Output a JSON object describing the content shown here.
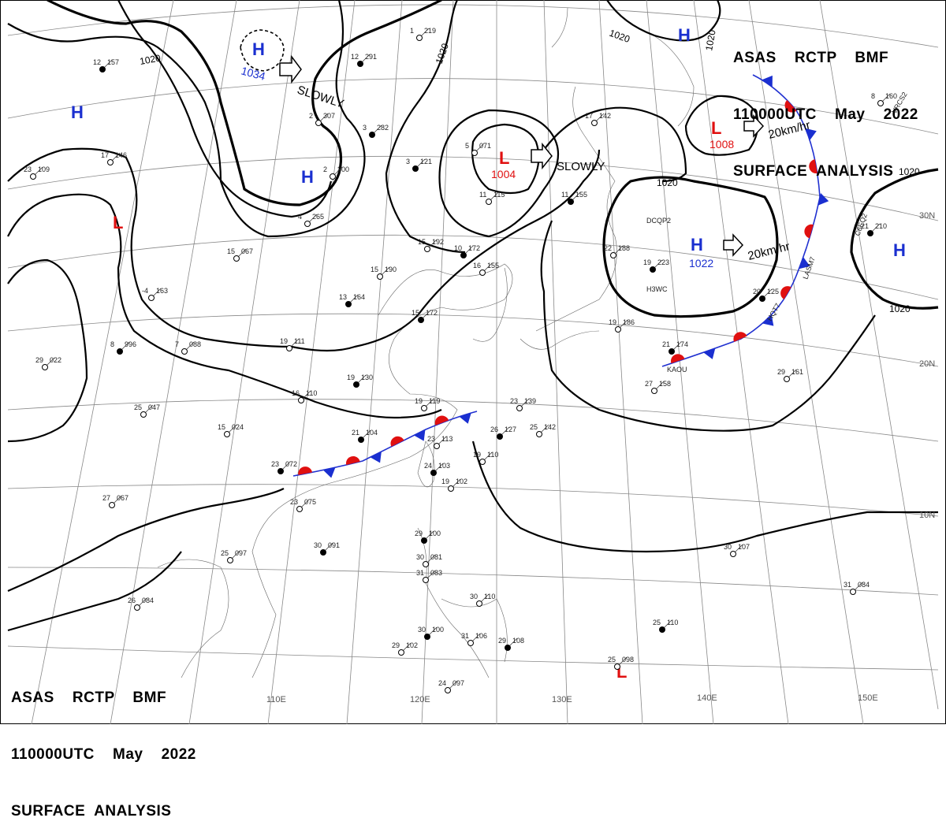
{
  "header": {
    "line1": "ASAS    RCTP    BMF",
    "line2": "110000UTC    May    2022",
    "line3": "SURFACE  ANALYSIS"
  },
  "isobar_label": "1020",
  "pressure_centers": [
    {
      "type": "H",
      "value": "1034",
      "color": "#1a2fd0"
    },
    {
      "type": "H",
      "value": "",
      "color": "#1a2fd0"
    },
    {
      "type": "H",
      "value": "",
      "color": "#1a2fd0"
    },
    {
      "type": "H",
      "value": "1022",
      "color": "#1a2fd0"
    },
    {
      "type": "H",
      "value": "",
      "color": "#1a2fd0"
    },
    {
      "type": "H",
      "value": "",
      "color": "#1a2fd0"
    },
    {
      "type": "L",
      "value": "1004",
      "color": "#e01010"
    },
    {
      "type": "L",
      "value": "1008",
      "color": "#e01010"
    },
    {
      "type": "L",
      "value": "",
      "color": "#e01010"
    },
    {
      "type": "L",
      "value": "",
      "color": "#e01010"
    }
  ],
  "movements": [
    "SLOWLY",
    "SLOWLY",
    "20km/hr",
    "20km/hr"
  ],
  "longitude_labels": [
    "110E",
    "120E",
    "130E",
    "140E",
    "150E"
  ],
  "latitude_labels": [
    "30N",
    "20N",
    "10N"
  ],
  "station_ids": [
    "DCQP2",
    "H3WC",
    "C6EQ2",
    "VRCS2",
    "LASM7",
    "KAOU",
    "HQT7"
  ],
  "stations": [
    {
      "t": "12",
      "p": "157"
    },
    {
      "t": "17",
      "p": "146"
    },
    {
      "t": "23",
      "p": "109"
    },
    {
      "t": "12",
      "p": "291"
    },
    {
      "t": "2",
      "p": "300"
    },
    {
      "t": "2",
      "p": "307"
    },
    {
      "t": "3",
      "p": "282"
    },
    {
      "t": "4",
      "p": "265"
    },
    {
      "t": "1",
      "p": "219"
    },
    {
      "t": "3",
      "p": "121"
    },
    {
      "t": "5",
      "p": "071"
    },
    {
      "t": "11",
      "p": "115"
    },
    {
      "t": "11",
      "p": "155"
    },
    {
      "t": "17",
      "p": "142"
    },
    {
      "t": "15",
      "p": "067"
    },
    {
      "t": "13",
      "p": "164"
    },
    {
      "t": "-4",
      "p": "163"
    },
    {
      "t": "7",
      "p": "088"
    },
    {
      "t": "8",
      "p": "996"
    },
    {
      "t": "29",
      "p": "022"
    },
    {
      "t": "19",
      "p": "111"
    },
    {
      "t": "19",
      "p": "130"
    },
    {
      "t": "16",
      "p": "110"
    },
    {
      "t": "15",
      "p": "190"
    },
    {
      "t": "10",
      "p": "172"
    },
    {
      "t": "15",
      "p": "192"
    },
    {
      "t": "16",
      "p": "155"
    },
    {
      "t": "15",
      "p": "172"
    },
    {
      "t": "25",
      "p": "047"
    },
    {
      "t": "15",
      "p": "024"
    },
    {
      "t": "21",
      "p": "104"
    },
    {
      "t": "19",
      "p": "119"
    },
    {
      "t": "23",
      "p": "113"
    },
    {
      "t": "24",
      "p": "103"
    },
    {
      "t": "19",
      "p": "102"
    },
    {
      "t": "23",
      "p": "139"
    },
    {
      "t": "26",
      "p": "127"
    },
    {
      "t": "25",
      "p": "142"
    },
    {
      "t": "19",
      "p": "110"
    },
    {
      "t": "23",
      "p": "072"
    },
    {
      "t": "23",
      "p": "075"
    },
    {
      "t": "27",
      "p": "067"
    },
    {
      "t": "30",
      "p": "091"
    },
    {
      "t": "25",
      "p": "097"
    },
    {
      "t": "26",
      "p": "084"
    },
    {
      "t": "29",
      "p": "100"
    },
    {
      "t": "30",
      "p": "081"
    },
    {
      "t": "31",
      "p": "083"
    },
    {
      "t": "30",
      "p": "100"
    },
    {
      "t": "29",
      "p": "102"
    },
    {
      "t": "31",
      "p": "106"
    },
    {
      "t": "29",
      "p": "108"
    },
    {
      "t": "24",
      "p": "097"
    },
    {
      "t": "30",
      "p": "110"
    },
    {
      "t": "21",
      "p": "174"
    },
    {
      "t": "27",
      "p": "158"
    },
    {
      "t": "29",
      "p": "161"
    },
    {
      "t": "19",
      "p": "223"
    },
    {
      "t": "22",
      "p": "188"
    },
    {
      "t": "19",
      "p": "186"
    },
    {
      "t": "21",
      "p": "210"
    },
    {
      "t": "30",
      "p": "107"
    },
    {
      "t": "31",
      "p": "084"
    },
    {
      "t": "25",
      "p": "110"
    },
    {
      "t": "25",
      "p": "098"
    },
    {
      "t": "8",
      "p": "160"
    },
    {
      "t": "20",
      "p": "125"
    }
  ],
  "fronts": [
    {
      "type": "stationary",
      "colors": [
        "#e01010",
        "#1a2fd0"
      ]
    },
    {
      "type": "stationary",
      "colors": [
        "#e01010",
        "#1a2fd0"
      ]
    },
    {
      "type": "cold",
      "colors": [
        "#1a2fd0"
      ]
    }
  ]
}
